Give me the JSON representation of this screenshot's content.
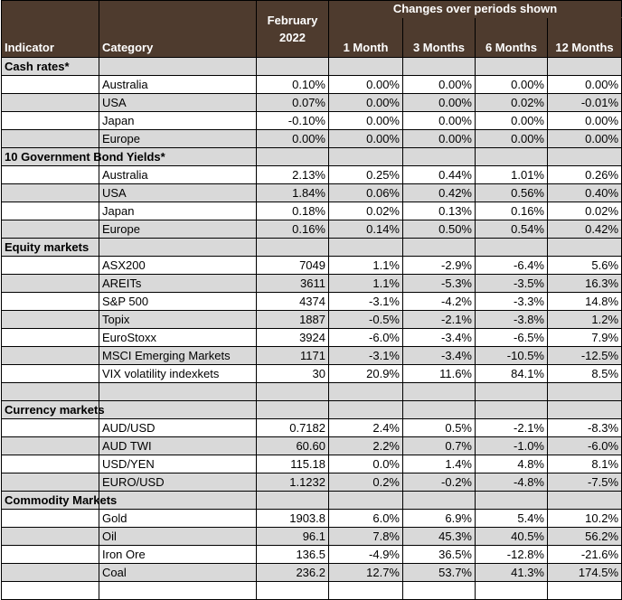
{
  "header": {
    "indicator": "Indicator",
    "category": "Category",
    "date_line1": "February",
    "date_line2": "2022",
    "changes_title": "Changes over periods shown",
    "periods": [
      "1 Month",
      "3 Months",
      "6 Months",
      "12 Months"
    ]
  },
  "sections": [
    {
      "title": "Cash rates*",
      "rows": [
        {
          "category": "Australia",
          "value": "0.10%",
          "changes": [
            "0.00%",
            "0.00%",
            "0.00%",
            "0.00%"
          ]
        },
        {
          "category": "USA",
          "value": "0.07%",
          "changes": [
            "0.00%",
            "0.00%",
            "0.02%",
            "-0.01%"
          ]
        },
        {
          "category": "Japan",
          "value": "-0.10%",
          "changes": [
            "0.00%",
            "0.00%",
            "0.00%",
            "0.00%"
          ]
        },
        {
          "category": "Europe",
          "value": "0.00%",
          "changes": [
            "0.00%",
            "0.00%",
            "0.00%",
            "0.00%"
          ]
        }
      ]
    },
    {
      "title": "10 Government Bond Yields*",
      "rows": [
        {
          "category": "Australia",
          "value": "2.13%",
          "changes": [
            "0.25%",
            "0.44%",
            "1.01%",
            "0.26%"
          ]
        },
        {
          "category": "USA",
          "value": "1.84%",
          "changes": [
            "0.06%",
            "0.42%",
            "0.56%",
            "0.40%"
          ]
        },
        {
          "category": "Japan",
          "value": "0.18%",
          "changes": [
            "0.02%",
            "0.13%",
            "0.16%",
            "0.02%"
          ]
        },
        {
          "category": "Europe",
          "value": "0.16%",
          "changes": [
            "0.14%",
            "0.50%",
            "0.54%",
            "0.42%"
          ]
        }
      ]
    },
    {
      "title": "Equity markets",
      "rows": [
        {
          "category": "ASX200",
          "value": "7049",
          "changes": [
            "1.1%",
            "-2.9%",
            "-6.4%",
            "5.6%"
          ]
        },
        {
          "category": "AREITs",
          "value": "3611",
          "changes": [
            "1.1%",
            "-5.3%",
            "-3.5%",
            "16.3%"
          ]
        },
        {
          "category": "S&P 500",
          "value": "4374",
          "changes": [
            "-3.1%",
            "-4.2%",
            "-3.3%",
            "14.8%"
          ]
        },
        {
          "category": "Topix",
          "value": "1887",
          "changes": [
            "-0.5%",
            "-2.1%",
            "-3.8%",
            "1.2%"
          ]
        },
        {
          "category": "EuroStoxx",
          "value": "3924",
          "changes": [
            "-6.0%",
            "-3.4%",
            "-6.5%",
            "7.9%"
          ]
        },
        {
          "category": "MSCI Emerging Markets",
          "value": "1171",
          "changes": [
            "-3.1%",
            "-3.4%",
            "-10.5%",
            "-12.5%"
          ]
        },
        {
          "category": "VIX volatility indexkets",
          "value": "30",
          "changes": [
            "20.9%",
            "11.6%",
            "84.1%",
            "8.5%"
          ]
        },
        {
          "category": "",
          "value": "",
          "changes": [
            "",
            "",
            "",
            ""
          ]
        }
      ]
    },
    {
      "title": "Currency markets",
      "rows": [
        {
          "category": "AUD/USD",
          "value": "0.7182",
          "changes": [
            "2.4%",
            "0.5%",
            "-2.1%",
            "-8.3%"
          ]
        },
        {
          "category": "AUD TWI",
          "value": "60.60",
          "changes": [
            "2.2%",
            "0.7%",
            "-1.0%",
            "-6.0%"
          ]
        },
        {
          "category": "USD/YEN",
          "value": "115.18",
          "changes": [
            "0.0%",
            "1.4%",
            "4.8%",
            "8.1%"
          ]
        },
        {
          "category": "EURO/USD",
          "value": "1.1232",
          "changes": [
            "0.2%",
            "-0.2%",
            "-4.8%",
            "-7.5%"
          ]
        }
      ]
    },
    {
      "title": "Commodity Markets",
      "rows": [
        {
          "category": "Gold",
          "value": "1903.8",
          "changes": [
            "6.0%",
            "6.9%",
            "5.4%",
            "10.2%"
          ]
        },
        {
          "category": "Oil",
          "value": "96.1",
          "changes": [
            "7.8%",
            "45.3%",
            "40.5%",
            "56.2%"
          ]
        },
        {
          "category": "Iron Ore",
          "value": "136.5",
          "changes": [
            "-4.9%",
            "36.5%",
            "-12.8%",
            "-21.6%"
          ]
        },
        {
          "category": "Coal",
          "value": "236.2",
          "changes": [
            "12.7%",
            "53.7%",
            "41.3%",
            "174.5%"
          ]
        },
        {
          "category": "",
          "value": "",
          "changes": [
            "",
            "",
            "",
            ""
          ]
        }
      ]
    }
  ]
}
